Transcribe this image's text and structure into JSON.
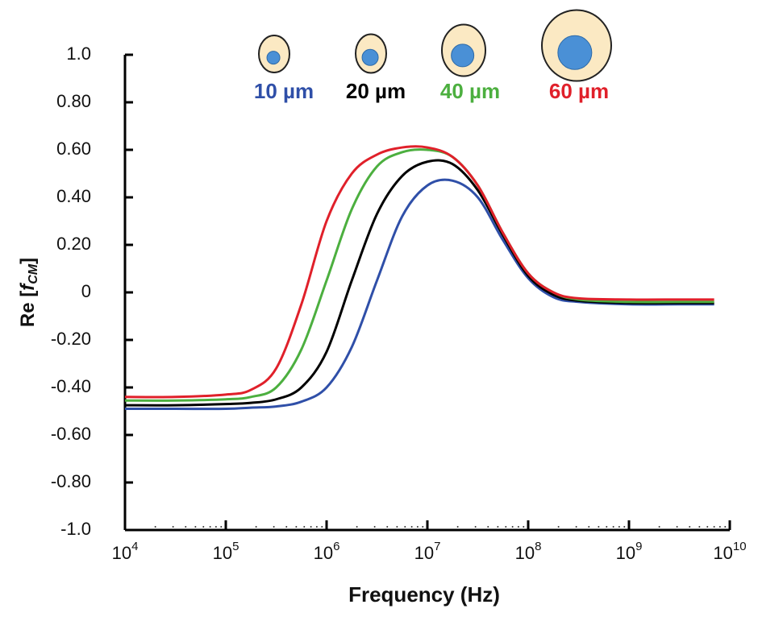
{
  "chart_data": {
    "type": "line",
    "xlabel": "Frequency (Hz)",
    "ylabel": {
      "text": "Re [",
      "italic": "f",
      "sub": "CM",
      "close": "]"
    },
    "log_x": true,
    "xlim": [
      10000,
      10000000000
    ],
    "xticks": [
      {
        "value": 10000,
        "label": "10",
        "sup": "4"
      },
      {
        "value": 100000,
        "label": "10",
        "sup": "5"
      },
      {
        "value": 1000000,
        "label": "10",
        "sup": "6"
      },
      {
        "value": 10000000,
        "label": "10",
        "sup": "7"
      },
      {
        "value": 100000000,
        "label": "10",
        "sup": "8"
      },
      {
        "value": 1000000000,
        "label": "10",
        "sup": "9"
      },
      {
        "value": 10000000000,
        "label": "10",
        "sup": "10"
      }
    ],
    "ylim": [
      -1,
      1
    ],
    "yticks": [
      {
        "value": 1,
        "label": "1.0"
      },
      {
        "value": 0.8,
        "label": "0.80"
      },
      {
        "value": 0.6,
        "label": "0.60"
      },
      {
        "value": 0.4,
        "label": "0.40"
      },
      {
        "value": 0.2,
        "label": "0.20"
      },
      0,
      {
        "value": -0.2,
        "label": "-0.20"
      },
      {
        "value": -0.4,
        "label": "-0.40"
      },
      {
        "value": -0.6,
        "label": "-0.60"
      },
      {
        "value": -0.8,
        "label": "-0.80"
      },
      {
        "value": -1,
        "label": "-1.0"
      }
    ],
    "x": [
      10000,
      31623,
      100000,
      177828,
      316228,
      562341,
      1000000,
      1778279,
      3162278,
      5623413,
      10000000,
      17782794,
      31622777,
      56234133,
      100000000,
      177827941,
      316227766,
      1000000000,
      3162277660,
      7000000000
    ],
    "series": [
      {
        "name": "10 µm",
        "color": "#2f4fa8",
        "values": [
          -0.49,
          -0.49,
          -0.49,
          -0.485,
          -0.48,
          -0.46,
          -0.4,
          -0.23,
          0.05,
          0.32,
          0.45,
          0.47,
          0.4,
          0.22,
          0.06,
          -0.02,
          -0.04,
          -0.05,
          -0.05,
          -0.05
        ]
      },
      {
        "name": "20 µm",
        "color": "#000000",
        "values": [
          -0.475,
          -0.475,
          -0.47,
          -0.465,
          -0.45,
          -0.4,
          -0.25,
          0.05,
          0.33,
          0.49,
          0.55,
          0.54,
          0.43,
          0.24,
          0.07,
          -0.01,
          -0.035,
          -0.045,
          -0.045,
          -0.045
        ]
      },
      {
        "name": "40 µm",
        "color": "#4caf3f",
        "values": [
          -0.455,
          -0.455,
          -0.45,
          -0.44,
          -0.4,
          -0.24,
          0.05,
          0.35,
          0.53,
          0.59,
          0.6,
          0.57,
          0.45,
          0.25,
          0.08,
          0.0,
          -0.03,
          -0.04,
          -0.04,
          -0.04
        ]
      },
      {
        "name": "60 µm",
        "color": "#e0202a",
        "values": [
          -0.44,
          -0.44,
          -0.43,
          -0.41,
          -0.32,
          -0.05,
          0.3,
          0.5,
          0.58,
          0.61,
          0.61,
          0.57,
          0.45,
          0.25,
          0.08,
          0.0,
          -0.025,
          -0.03,
          -0.03,
          -0.03
        ]
      }
    ]
  }
}
